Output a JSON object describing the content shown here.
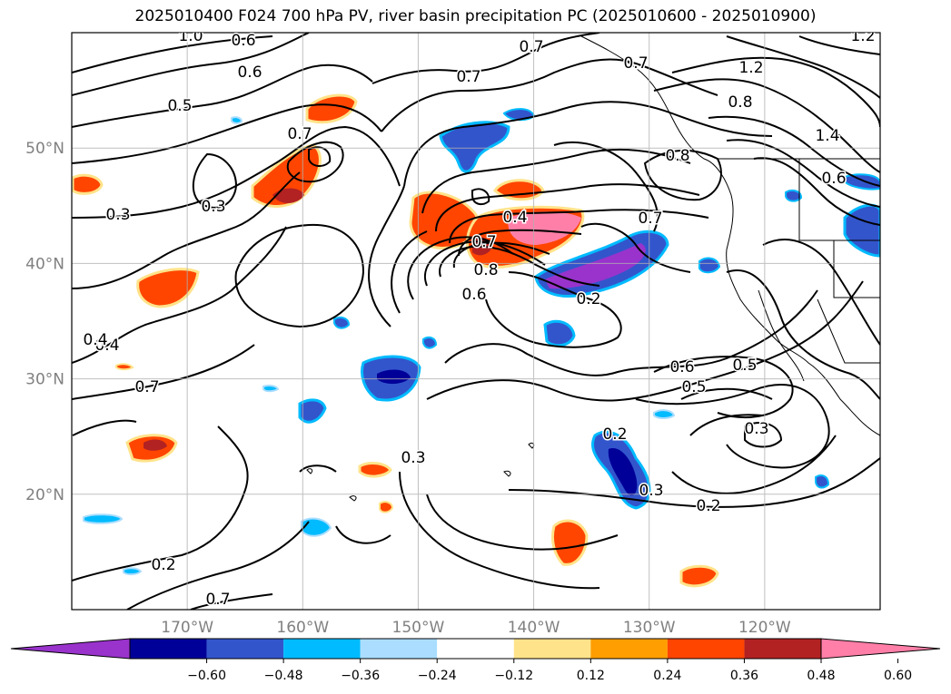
{
  "title": "2025010400 F024 700 hPa PV, river basin precipitation PC (2025010600 - 2025010900)",
  "map": {
    "lon_range": [
      -180,
      -110
    ],
    "lat_range": [
      10,
      60
    ],
    "lon_ticks": [
      {
        "value": -170,
        "label": "170°W"
      },
      {
        "value": -160,
        "label": "160°W"
      },
      {
        "value": -150,
        "label": "150°W"
      },
      {
        "value": -140,
        "label": "140°W"
      },
      {
        "value": -130,
        "label": "130°W"
      },
      {
        "value": -120,
        "label": "120°W"
      }
    ],
    "lat_ticks": [
      {
        "value": 20,
        "label": "20°N"
      },
      {
        "value": 30,
        "label": "30°N"
      },
      {
        "value": 40,
        "label": "40°N"
      },
      {
        "value": 50,
        "label": "50°N"
      }
    ],
    "tick_label_color": "#808080",
    "gridlines": true
  },
  "colorbar": {
    "colors": [
      "#9933cc",
      "#000099",
      "#3355cc",
      "#00bbff",
      "#aaddff",
      "#ffffff",
      "#ffe38a",
      "#ff9e00",
      "#ff4500",
      "#b22222",
      "#ff7fa8"
    ],
    "ticks": [
      "−0.60",
      "−0.48",
      "−0.36",
      "−0.24",
      "−0.12",
      "0.12",
      "0.24",
      "0.36",
      "0.48",
      "0.60"
    ]
  },
  "contour_labels": [
    "1.0",
    "0.6",
    "0.6",
    "0.5",
    "0.7",
    "0.7",
    "0.7",
    "0.7",
    "1.2",
    "1.2",
    "0.8",
    "1.4",
    "0.8",
    "0.6",
    "0.3",
    "0.3",
    "0.4",
    "0.7",
    "0.8",
    "0.6",
    "0.2",
    "0.4",
    "0.4",
    "0.7",
    "0.6",
    "0.5",
    "0.5",
    "0.3",
    "0.3",
    "0.3",
    "0.2",
    "0.2",
    "0.2",
    "0.7",
    "0.7"
  ]
}
